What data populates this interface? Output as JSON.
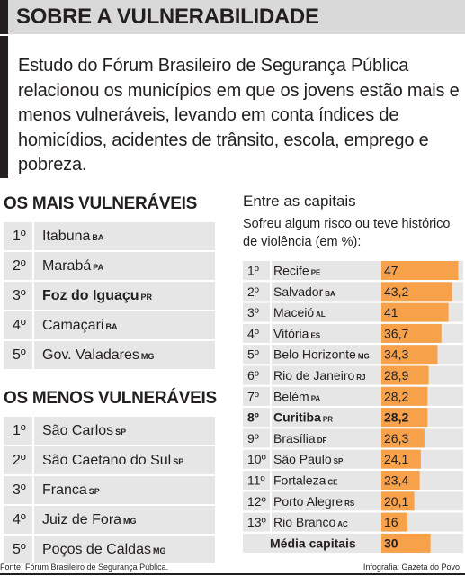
{
  "header": {
    "title": "SOBRE A VULNERABILIDADE"
  },
  "intro": "Estudo do Fórum Brasileiro de Segurança Pública relacionou os municípios em que os jovens estão mais e menos vulneráveis, levando em conta índices de homicídios, acidentes de trânsito, escola, emprego e pobreza.",
  "mais": {
    "title": "OS MAIS VULNERÁVEIS",
    "items": [
      {
        "pos": "1º",
        "name": "Itabuna",
        "uf": "BA",
        "bold": false
      },
      {
        "pos": "2º",
        "name": "Marabá",
        "uf": "PA",
        "bold": false
      },
      {
        "pos": "3º",
        "name": "Foz do Iguaçu",
        "uf": "PR",
        "bold": true
      },
      {
        "pos": "4º",
        "name": "Camaçari",
        "uf": "BA",
        "bold": false
      },
      {
        "pos": "5º",
        "name": "Gov. Valadares",
        "uf": "MG",
        "bold": false
      }
    ]
  },
  "menos": {
    "title": "OS MENOS VULNERÁVEIS",
    "items": [
      {
        "pos": "1º",
        "name": "São Carlos",
        "uf": "SP",
        "bold": false
      },
      {
        "pos": "2º",
        "name": "São Caetano do Sul",
        "uf": "SP",
        "bold": false
      },
      {
        "pos": "3º",
        "name": "Franca",
        "uf": "SP",
        "bold": false
      },
      {
        "pos": "4º",
        "name": "Juiz de Fora",
        "uf": "MG",
        "bold": false
      },
      {
        "pos": "5º",
        "name": "Poços de Caldas",
        "uf": "MG",
        "bold": false
      }
    ]
  },
  "chart_data": {
    "type": "bar",
    "orientation": "horizontal",
    "title": "Entre as capitais",
    "subtitle": "Sofreu algum risco ou teve histórico de violência (em %):",
    "xlim": [
      0,
      70
    ],
    "grid": false,
    "bar_color": "#f7a14a",
    "rows": [
      {
        "pos": "1º",
        "city": "Recife",
        "uf": "PE",
        "value": 47,
        "label": "47",
        "bold": false
      },
      {
        "pos": "2º",
        "city": "Salvador",
        "uf": "BA",
        "value": 43.2,
        "label": "43,2",
        "bold": false
      },
      {
        "pos": "3º",
        "city": "Maceió",
        "uf": "AL",
        "value": 41,
        "label": "41",
        "bold": false
      },
      {
        "pos": "4º",
        "city": "Vitória",
        "uf": "ES",
        "value": 36.7,
        "label": "36,7",
        "bold": false
      },
      {
        "pos": "5º",
        "city": "Belo Horizonte",
        "uf": "MG",
        "value": 34.3,
        "label": "34,3",
        "bold": false
      },
      {
        "pos": "6º",
        "city": "Rio de Janeiro",
        "uf": "RJ",
        "value": 28.9,
        "label": "28,9",
        "bold": false
      },
      {
        "pos": "7º",
        "city": "Belém",
        "uf": "PA",
        "value": 28.2,
        "label": "28,2",
        "bold": false
      },
      {
        "pos": "8º",
        "city": "Curitiba",
        "uf": "PR",
        "value": 28.2,
        "label": "28,2",
        "bold": true
      },
      {
        "pos": "9º",
        "city": "Brasília",
        "uf": "DF",
        "value": 26.3,
        "label": "26,3",
        "bold": false
      },
      {
        "pos": "10º",
        "city": "São Paulo",
        "uf": "SP",
        "value": 24.1,
        "label": "24,1",
        "bold": false
      },
      {
        "pos": "11º",
        "city": "Fortaleza",
        "uf": "CE",
        "value": 23.4,
        "label": "23,4",
        "bold": false
      },
      {
        "pos": "12º",
        "city": "Porto Alegre",
        "uf": "RS",
        "value": 20.1,
        "label": "20,1",
        "bold": false
      },
      {
        "pos": "13º",
        "city": "Rio Branco",
        "uf": "AC",
        "value": 16,
        "label": "16",
        "bold": false
      }
    ],
    "average": {
      "city": "Média capitais",
      "value": 30,
      "label": "30"
    }
  },
  "footer": {
    "source": "Fonte: Fórum Brasileiro de Segurança Pública.",
    "credit": "Infografia: Gazeta do Povo"
  }
}
